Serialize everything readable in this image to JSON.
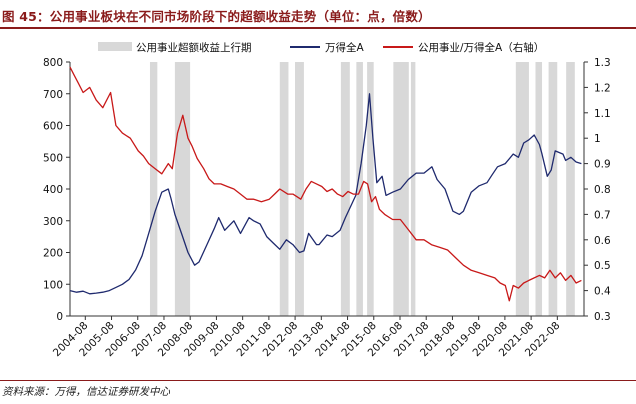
{
  "title": "图 45：公用事业板块在不同市场阶段下的超额收益走势（单位：点，倍数）",
  "source": "资料来源：万得，信达证券研发中心",
  "colors": {
    "wind_a": "#1f2a6e",
    "ratio": "#c81919",
    "shade": "#d8d8d8",
    "title": "#8a1b1b"
  },
  "chart_data": {
    "type": "line",
    "title": "图 45：公用事业板块在不同市场阶段下的超额收益走势（单位：点，倍数）",
    "legend": [
      "公用事业超额收益上行期",
      "万得全A",
      "公用事业/万得全A（右轴）"
    ],
    "legend_position": "top",
    "x_tick_labels": [
      "2004-08",
      "2005-08",
      "2006-08",
      "2007-08",
      "2008-08",
      "2009-08",
      "2010-08",
      "2011-08",
      "2012-08",
      "2013-08",
      "2014-08",
      "2015-08",
      "2016-08",
      "2017-08",
      "2018-08",
      "2019-08",
      "2020-08",
      "2021-08",
      "2022-08"
    ],
    "x_range": [
      2004.0,
      2023.6
    ],
    "y_left": {
      "range": [
        0,
        800
      ],
      "ticks": [
        0,
        100,
        200,
        300,
        400,
        500,
        600,
        700,
        800
      ]
    },
    "y_right": {
      "range": [
        0.3,
        1.3
      ],
      "ticks": [
        0.3,
        0.4,
        0.5,
        0.6,
        0.7,
        0.8,
        0.9,
        1.0,
        1.1,
        1.2,
        1.3
      ],
      "tick_labels": [
        "0.3",
        "0.4",
        "0.5",
        "0.6",
        "0.7",
        "0.8",
        "0.9",
        "1",
        "1.1",
        "1.2",
        "1.3"
      ]
    },
    "shaded_periods": [
      [
        2007.05,
        2007.33
      ],
      [
        2008.0,
        2008.58
      ],
      [
        2012.0,
        2012.33
      ],
      [
        2012.58,
        2012.92
      ],
      [
        2014.33,
        2014.67
      ],
      [
        2014.92,
        2015.17
      ],
      [
        2015.33,
        2015.58
      ],
      [
        2016.33,
        2016.92
      ],
      [
        2017.0,
        2017.17
      ],
      [
        2021.0,
        2021.5
      ],
      [
        2021.75,
        2022.0
      ],
      [
        2022.25,
        2022.58
      ],
      [
        2022.92,
        2023.25
      ]
    ],
    "series": [
      {
        "name": "万得全A",
        "axis": "left",
        "x": [
          2004.0,
          2004.25,
          2004.5,
          2004.75,
          2005.0,
          2005.25,
          2005.5,
          2005.75,
          2006.0,
          2006.25,
          2006.5,
          2006.75,
          2007.0,
          2007.25,
          2007.5,
          2007.75,
          2007.85,
          2008.0,
          2008.25,
          2008.5,
          2008.75,
          2008.92,
          2009.25,
          2009.5,
          2009.67,
          2009.9,
          2010.25,
          2010.5,
          2010.83,
          2011.0,
          2011.25,
          2011.5,
          2011.75,
          2012.0,
          2012.25,
          2012.5,
          2012.75,
          2012.92,
          2013.1,
          2013.4,
          2013.5,
          2013.8,
          2014.0,
          2014.3,
          2014.5,
          2014.7,
          2014.9,
          2015.1,
          2015.3,
          2015.42,
          2015.55,
          2015.7,
          2015.9,
          2016.05,
          2016.3,
          2016.6,
          2016.9,
          2017.2,
          2017.5,
          2017.8,
          2018.0,
          2018.3,
          2018.6,
          2018.85,
          2019.0,
          2019.3,
          2019.6,
          2019.9,
          2020.1,
          2020.3,
          2020.6,
          2020.9,
          2021.1,
          2021.3,
          2021.5,
          2021.7,
          2021.9,
          2022.0,
          2022.2,
          2022.35,
          2022.5,
          2022.8,
          2022.9,
          2023.1,
          2023.3,
          2023.5
        ],
        "values": [
          80,
          75,
          78,
          70,
          72,
          75,
          80,
          90,
          100,
          115,
          145,
          190,
          260,
          330,
          390,
          400,
          370,
          320,
          260,
          200,
          160,
          170,
          230,
          275,
          310,
          270,
          300,
          260,
          310,
          300,
          290,
          250,
          230,
          210,
          240,
          225,
          200,
          205,
          260,
          225,
          225,
          255,
          250,
          270,
          310,
          345,
          380,
          480,
          600,
          700,
          560,
          420,
          440,
          380,
          390,
          400,
          430,
          450,
          450,
          470,
          430,
          400,
          330,
          320,
          330,
          390,
          410,
          420,
          445,
          470,
          480,
          510,
          500,
          545,
          555,
          570,
          540,
          510,
          440,
          460,
          520,
          510,
          490,
          500,
          485,
          480
        ]
      },
      {
        "name": "公用事业/万得全A（右轴）",
        "axis": "right",
        "x": [
          2004.0,
          2004.15,
          2004.3,
          2004.5,
          2004.75,
          2005.0,
          2005.25,
          2005.55,
          2005.75,
          2006.0,
          2006.3,
          2006.6,
          2006.8,
          2007.0,
          2007.25,
          2007.5,
          2007.75,
          2007.9,
          2008.1,
          2008.3,
          2008.5,
          2008.65,
          2008.85,
          2009.1,
          2009.3,
          2009.5,
          2009.75,
          2010.0,
          2010.25,
          2010.5,
          2010.75,
          2011.0,
          2011.3,
          2011.6,
          2011.8,
          2012.0,
          2012.3,
          2012.5,
          2012.8,
          2013.0,
          2013.2,
          2013.4,
          2013.6,
          2013.8,
          2014.0,
          2014.2,
          2014.4,
          2014.6,
          2014.8,
          2015.0,
          2015.2,
          2015.35,
          2015.5,
          2015.65,
          2015.8,
          2016.0,
          2016.3,
          2016.6,
          2016.9,
          2017.2,
          2017.5,
          2017.8,
          2018.1,
          2018.4,
          2018.7,
          2019.0,
          2019.3,
          2019.6,
          2019.9,
          2020.2,
          2020.4,
          2020.6,
          2020.75,
          2020.9,
          2021.1,
          2021.3,
          2021.5,
          2021.7,
          2021.9,
          2022.1,
          2022.3,
          2022.5,
          2022.7,
          2022.9,
          2023.1,
          2023.3,
          2023.5
        ],
        "values": [
          1.28,
          1.25,
          1.22,
          1.18,
          1.2,
          1.15,
          1.12,
          1.18,
          1.05,
          1.02,
          1.0,
          0.95,
          0.93,
          0.9,
          0.88,
          0.86,
          0.9,
          0.88,
          1.02,
          1.09,
          1.0,
          0.97,
          0.92,
          0.88,
          0.84,
          0.82,
          0.82,
          0.81,
          0.8,
          0.78,
          0.76,
          0.76,
          0.75,
          0.76,
          0.78,
          0.8,
          0.78,
          0.78,
          0.76,
          0.8,
          0.83,
          0.82,
          0.81,
          0.79,
          0.8,
          0.78,
          0.77,
          0.79,
          0.78,
          0.78,
          0.83,
          0.82,
          0.75,
          0.77,
          0.72,
          0.7,
          0.68,
          0.68,
          0.64,
          0.6,
          0.6,
          0.58,
          0.57,
          0.56,
          0.53,
          0.5,
          0.48,
          0.47,
          0.46,
          0.45,
          0.43,
          0.42,
          0.36,
          0.42,
          0.41,
          0.43,
          0.44,
          0.45,
          0.46,
          0.45,
          0.48,
          0.45,
          0.47,
          0.44,
          0.46,
          0.43,
          0.44
        ]
      }
    ]
  }
}
